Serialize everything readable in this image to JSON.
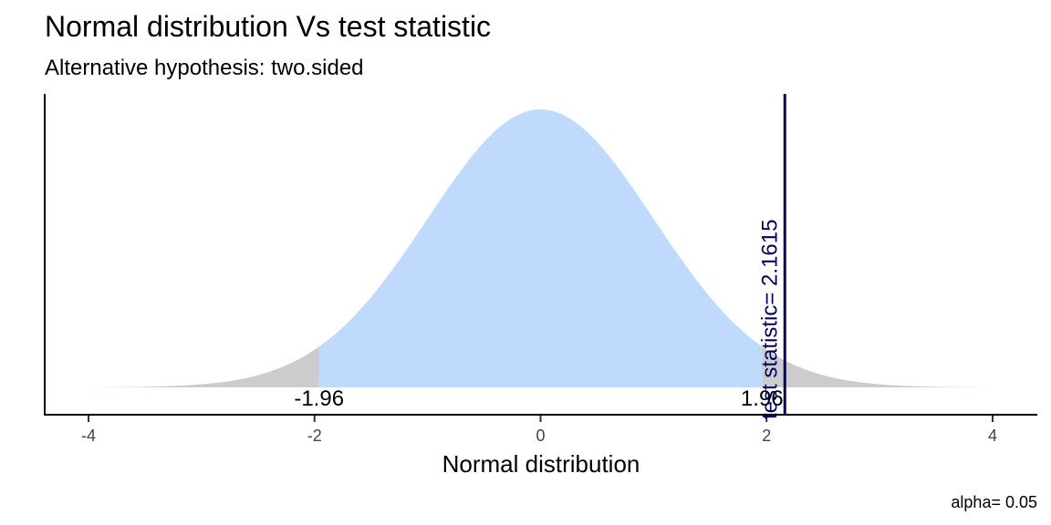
{
  "chart_data": {
    "type": "area",
    "title": "Normal distribution Vs test statistic",
    "subtitle": "Alternative hypothesis: two.sided",
    "xlabel": "Normal distribution",
    "ylabel": "",
    "xlim": [
      -4,
      4
    ],
    "x_ticks": [
      -4,
      -2,
      0,
      2,
      4
    ],
    "x_tick_labels": [
      "-4",
      "-2",
      "0",
      "2",
      "4"
    ],
    "critical_values": [
      -1.96,
      1.96
    ],
    "critical_labels": [
      "-1.96",
      "1.96"
    ],
    "test_statistic": 2.1615,
    "test_statistic_label": "test statistic= 2.1615",
    "caption": "alpha= 0.05",
    "grid": false,
    "colors": {
      "acceptance_region": "#bfdafd",
      "rejection_region": "#cccccc",
      "test_statistic_line": "#000066",
      "axis": "#000000"
    }
  }
}
